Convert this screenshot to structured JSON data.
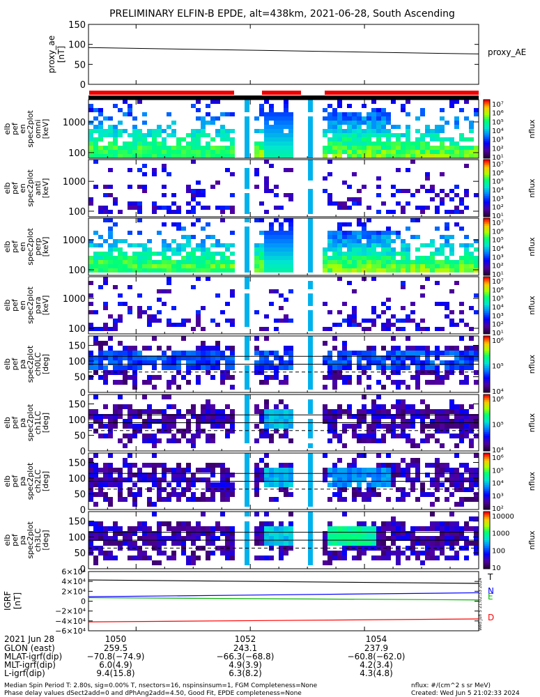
{
  "title": "PRELIMINARY ELFIN-B EPDE, alt=438km, 2021-06-28, South Ascending",
  "chart_data": [
    {
      "type": "line",
      "name": "proxy_ae",
      "ylabel": [
        "proxy_ae",
        "[nT]"
      ],
      "ylim": [
        0,
        150
      ],
      "yticks": [
        "150",
        "100",
        "50",
        "0"
      ],
      "series": [
        {
          "name": "proxy_AE",
          "x": [
            "10:49:10",
            "10:56:00"
          ],
          "y": [
            92,
            76
          ]
        }
      ]
    },
    {
      "type": "heatmap",
      "name": "epde-spectrograms",
      "time_range": [
        "10:49:10",
        "10:56:00"
      ],
      "panels": [
        {
          "ylabel": [
            "elb",
            "pef",
            "en",
            "spec2plot",
            "omni",
            "[keV]"
          ],
          "yticks": [
            "1000",
            "100"
          ],
          "cb_labels": [
            "10⁷",
            "10⁶",
            "10⁵",
            "10⁴",
            "10³",
            "10²",
            "10¹"
          ],
          "cb_unit": "nflux"
        },
        {
          "ylabel": [
            "elb",
            "pef",
            "en",
            "spec2plot",
            "anti",
            "[keV]"
          ],
          "yticks": [
            "1000",
            "100"
          ],
          "cb_labels": [
            "10⁷",
            "10⁶",
            "10⁵",
            "10⁴",
            "10³",
            "10²",
            "10¹"
          ],
          "cb_unit": "nflux"
        },
        {
          "ylabel": [
            "elb",
            "pef",
            "en",
            "spec2plot",
            "perp",
            "[keV]"
          ],
          "yticks": [
            "1000",
            "100"
          ],
          "cb_labels": [
            "10⁷",
            "10⁶",
            "10⁵",
            "10⁴",
            "10³",
            "10²",
            "10¹"
          ],
          "cb_unit": "nflux"
        },
        {
          "ylabel": [
            "elb",
            "pef",
            "en",
            "spec2plot",
            "para",
            "[keV]"
          ],
          "yticks": [
            "1000",
            "100"
          ],
          "cb_labels": [
            "10⁷",
            "10⁶",
            "10⁵",
            "10⁴",
            "10³",
            "10²",
            "10¹"
          ],
          "cb_unit": "nflux"
        },
        {
          "ylabel": [
            "elb",
            "pef",
            "pa",
            "spec2plot",
            "ch0LC",
            "[deg]"
          ],
          "yticks": [
            "150",
            "100",
            "50",
            "0"
          ],
          "cb_labels": [
            "10⁶",
            "10⁵",
            "10⁴"
          ],
          "cb_unit": "nflux"
        },
        {
          "ylabel": [
            "elb",
            "pef",
            "pa",
            "spec2plot",
            "ch1LC",
            "[deg]"
          ],
          "yticks": [
            "150",
            "100",
            "50",
            "0"
          ],
          "cb_labels": [
            "10⁶",
            "10⁵",
            "10⁴"
          ],
          "cb_unit": "nflux"
        },
        {
          "ylabel": [
            "elb",
            "pef",
            "pa",
            "spec2plot",
            "ch2LC",
            "[deg]"
          ],
          "yticks": [
            "150",
            "100",
            "50",
            "0"
          ],
          "cb_labels": [
            "10⁶",
            "10⁵",
            "10⁴",
            "10³",
            "10²"
          ],
          "cb_unit": "nflux"
        },
        {
          "ylabel": [
            "elb",
            "pef",
            "pa",
            "spec2plot",
            "ch3LC",
            "[deg]"
          ],
          "yticks": [
            "150",
            "100",
            "50",
            "0"
          ],
          "cb_labels": [
            "10000",
            "1000",
            "100",
            "10"
          ],
          "cb_unit": "nflux"
        }
      ],
      "data_coverage_intervals": [
        [
          "10:49:10",
          "10:51:45"
        ],
        [
          "10:52:05",
          "10:52:45"
        ],
        [
          "10:53:15",
          "10:56:00"
        ]
      ]
    },
    {
      "type": "line",
      "name": "igrf",
      "ylabel": [
        "IGRF",
        "[nT]"
      ],
      "ylim": [
        -60000,
        60000
      ],
      "yticks": [
        "6×10⁴",
        "4×10⁴",
        "2×10⁴",
        "0",
        "−2×10⁴",
        "−4×10⁴",
        "−6×10⁴"
      ],
      "series": [
        {
          "name": "T",
          "color": "#000000",
          "y": [
            43000,
            36000
          ]
        },
        {
          "name": "N",
          "color": "#0000ff",
          "y": [
            9000,
            17000
          ]
        },
        {
          "name": "E",
          "color": "#00b400",
          "y": [
            7000,
            2500
          ]
        },
        {
          "name": "D",
          "color": "#ff0000",
          "y": [
            -42000,
            -36000
          ]
        }
      ]
    }
  ],
  "xaxis": {
    "ticks": [
      "1050",
      "1052",
      "1054"
    ],
    "rows": [
      {
        "label": "2021 Jun 28",
        "values": [
          "1050",
          "1052",
          "1054"
        ]
      },
      {
        "label": "GLON (east)",
        "values": [
          "259.5",
          "243.1",
          "237.9"
        ]
      },
      {
        "label": "MLAT-igrf(dip)",
        "values": [
          "−70.8(−74.9)",
          "−66.3(−68.8)",
          "−60.8(−62.0)"
        ]
      },
      {
        "label": "MLT-igrf(dip)",
        "values": [
          "6.0(4.9)",
          "4.9(3.9)",
          "4.2(3.4)"
        ]
      },
      {
        "label": "L-igrf(dip)",
        "values": [
          "9.4(15.8)",
          "6.3(8.2)",
          "4.3(4.8)"
        ]
      }
    ]
  },
  "footer": {
    "line1": "Median Spin Period T: 2.80s, sig=0.00% T, nsectors=16, nspinsinsum=1, FGM Completeness=None",
    "line2": "Phase delay values dSect2add=0 and dPhAng2add=4.50, Good Fit, EPDE completeness=None",
    "units": "nflux: #/(cm^2 s sr MeV)",
    "created": "Created: Wed Jun  5 21:02:33 2024"
  },
  "stamp": "Wed Jun  5 21:02:33 2024"
}
